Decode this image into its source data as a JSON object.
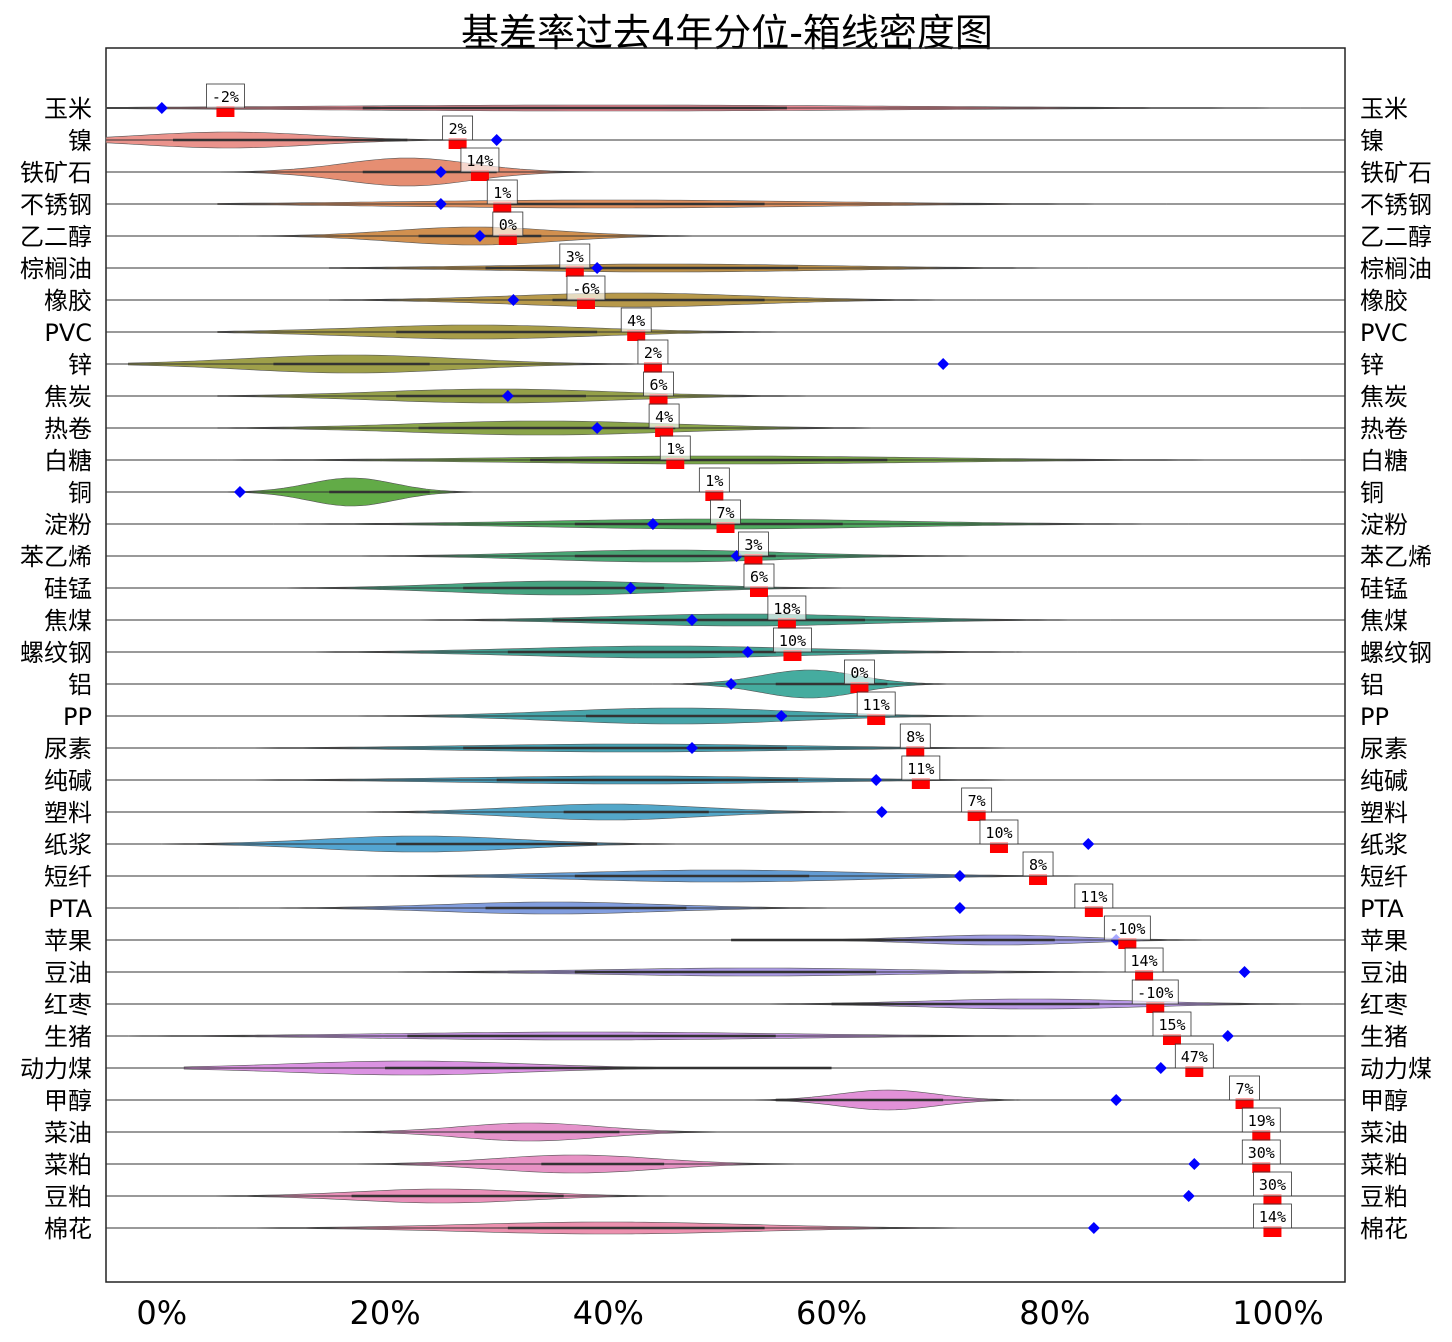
{
  "chart_data": {
    "type": "violin",
    "title": "基差率过去4年分位-箱线密度图",
    "xlabel": "",
    "ylabel": "",
    "xlim": [
      -0.05,
      1.06
    ],
    "xticks": [
      0,
      0.2,
      0.4,
      0.6,
      0.8,
      1.0
    ],
    "xtick_labels": [
      "0%",
      "20%",
      "40%",
      "60%",
      "80%",
      "100%"
    ],
    "grid": false,
    "legend": "none",
    "current_marker_color": "#ff0000",
    "reference_marker_color": "#0000ff",
    "categories": [
      "玉米",
      "镍",
      "铁矿石",
      "不锈钢",
      "乙二醇",
      "棕榈油",
      "橡胶",
      "PVC",
      "锌",
      "焦炭",
      "热卷",
      "白糖",
      "铜",
      "淀粉",
      "苯乙烯",
      "硅锰",
      "焦煤",
      "螺纹钢",
      "铝",
      "PP",
      "尿素",
      "纯碱",
      "塑料",
      "纸浆",
      "短纤",
      "PTA",
      "苹果",
      "豆油",
      "红枣",
      "生猪",
      "动力煤",
      "甲醇",
      "菜油",
      "菜粕",
      "豆粕",
      "棉花"
    ],
    "series": [
      {
        "name": "玉米",
        "color": "#e8818c",
        "density_center": 0.4,
        "density_spread": 0.55,
        "height": 3,
        "line_range": [
          -0.05,
          1.02
        ],
        "box": [
          0.18,
          0.56
        ],
        "current": 0.057,
        "current_label": "-2%",
        "reference": 0.0
      },
      {
        "name": "镍",
        "color": "#ea8d86",
        "density_center": 0.06,
        "density_spread": 0.16,
        "height": 8,
        "line_range": [
          -0.05,
          0.35
        ],
        "box": [
          0.01,
          0.22
        ],
        "current": 0.265,
        "current_label": "2%",
        "reference": 0.3
      },
      {
        "name": "铁矿石",
        "color": "#e5886a",
        "density_center": 0.22,
        "density_spread": 0.12,
        "height": 14,
        "line_range": [
          -0.03,
          1.05
        ],
        "box": [
          0.18,
          0.3
        ],
        "current": 0.285,
        "current_label": "14%",
        "reference": 0.25
      },
      {
        "name": "不锈钢",
        "color": "#df8a55",
        "density_center": 0.4,
        "density_spread": 0.38,
        "height": 4,
        "line_range": [
          0.05,
          0.9
        ],
        "box": [
          0.3,
          0.54
        ],
        "current": 0.305,
        "current_label": "1%",
        "reference": 0.25
      },
      {
        "name": "乙二醇",
        "color": "#cf8a46",
        "density_center": 0.28,
        "density_spread": 0.15,
        "height": 9,
        "line_range": [
          0.07,
          0.62
        ],
        "box": [
          0.23,
          0.34
        ],
        "current": 0.31,
        "current_label": "0%",
        "reference": 0.285
      },
      {
        "name": "棕榈油",
        "color": "#b88a3e",
        "density_center": 0.45,
        "density_spread": 0.3,
        "height": 4,
        "line_range": [
          0.15,
          0.83
        ],
        "box": [
          0.29,
          0.57
        ],
        "current": 0.37,
        "current_label": "3%",
        "reference": 0.39
      },
      {
        "name": "橡胶",
        "color": "#b39440",
        "density_center": 0.42,
        "density_spread": 0.22,
        "height": 7,
        "line_range": [
          0.15,
          0.73
        ],
        "box": [
          0.35,
          0.54
        ],
        "current": 0.38,
        "current_label": "-6%",
        "reference": 0.315
      },
      {
        "name": "PVC",
        "color": "#a3983e",
        "density_center": 0.28,
        "density_spread": 0.22,
        "height": 7,
        "line_range": [
          0.05,
          0.65
        ],
        "box": [
          0.21,
          0.39
        ],
        "current": 0.425,
        "current_label": "4%",
        "reference": null
      },
      {
        "name": "锌",
        "color": "#999a3f",
        "density_center": 0.17,
        "density_spread": 0.2,
        "height": 9,
        "line_range": [
          -0.03,
          0.65
        ],
        "box": [
          0.1,
          0.24
        ],
        "current": 0.44,
        "current_label": "2%",
        "reference": 0.7
      },
      {
        "name": "焦炭",
        "color": "#8f9b3f",
        "density_center": 0.3,
        "density_spread": 0.22,
        "height": 7,
        "line_range": [
          0.05,
          0.7
        ],
        "box": [
          0.21,
          0.38
        ],
        "current": 0.445,
        "current_label": "6%",
        "reference": 0.31
      },
      {
        "name": "热卷",
        "color": "#849f3f",
        "density_center": 0.34,
        "density_spread": 0.24,
        "height": 7,
        "line_range": [
          0.05,
          0.72
        ],
        "box": [
          0.23,
          0.46
        ],
        "current": 0.45,
        "current_label": "4%",
        "reference": 0.39
      },
      {
        "name": "白糖",
        "color": "#73a13e",
        "density_center": 0.5,
        "density_spread": 0.38,
        "height": 4,
        "line_range": [
          0.05,
          1.02
        ],
        "box": [
          0.33,
          0.65
        ],
        "current": 0.46,
        "current_label": "1%",
        "reference": null
      },
      {
        "name": "铜",
        "color": "#5aa73d",
        "density_center": 0.17,
        "density_spread": 0.08,
        "height": 14,
        "line_range": [
          0.02,
          0.36
        ],
        "box": [
          0.15,
          0.24
        ],
        "current": 0.495,
        "current_label": "1%",
        "reference": 0.07
      },
      {
        "name": "淀粉",
        "color": "#45a455",
        "density_center": 0.5,
        "density_spread": 0.32,
        "height": 5,
        "line_range": [
          0.1,
          0.92
        ],
        "box": [
          0.37,
          0.61
        ],
        "current": 0.505,
        "current_label": "7%",
        "reference": 0.44
      },
      {
        "name": "苯乙烯",
        "color": "#3fa06d",
        "density_center": 0.45,
        "density_spread": 0.22,
        "height": 6,
        "line_range": [
          0.1,
          0.88
        ],
        "box": [
          0.37,
          0.55
        ],
        "current": 0.53,
        "current_label": "3%",
        "reference": 0.515
      },
      {
        "name": "硅锰",
        "color": "#3b9e79",
        "density_center": 0.36,
        "density_spread": 0.2,
        "height": 7,
        "line_range": [
          0.05,
          0.75
        ],
        "box": [
          0.27,
          0.45
        ],
        "current": 0.535,
        "current_label": "6%",
        "reference": 0.42
      },
      {
        "name": "焦煤",
        "color": "#3a9d84",
        "density_center": 0.52,
        "density_spread": 0.24,
        "height": 6,
        "line_range": [
          0.1,
          0.85
        ],
        "box": [
          0.35,
          0.63
        ],
        "current": 0.56,
        "current_label": "18%",
        "reference": 0.475
      },
      {
        "name": "螺纹钢",
        "color": "#3a9d8e",
        "density_center": 0.45,
        "density_spread": 0.26,
        "height": 6,
        "line_range": [
          0.05,
          0.82
        ],
        "box": [
          0.31,
          0.55
        ],
        "current": 0.565,
        "current_label": "10%",
        "reference": 0.525
      },
      {
        "name": "铝",
        "color": "#3ba89a",
        "density_center": 0.58,
        "density_spread": 0.09,
        "height": 14,
        "line_range": [
          0.44,
          0.75
        ],
        "box": [
          0.55,
          0.65
        ],
        "current": 0.625,
        "current_label": "0%",
        "reference": 0.51
      },
      {
        "name": "PP",
        "color": "#3ca0a5",
        "density_center": 0.46,
        "density_spread": 0.22,
        "height": 8,
        "line_range": [
          0.1,
          0.85
        ],
        "box": [
          0.38,
          0.56
        ],
        "current": 0.64,
        "current_label": "11%",
        "reference": 0.555
      },
      {
        "name": "尿素",
        "color": "#3c9cae",
        "density_center": 0.42,
        "density_spread": 0.3,
        "height": 4,
        "line_range": [
          0.05,
          0.92
        ],
        "box": [
          0.27,
          0.56
        ],
        "current": 0.675,
        "current_label": "8%",
        "reference": 0.475
      },
      {
        "name": "纯碱",
        "color": "#3e99b7",
        "density_center": 0.42,
        "density_spread": 0.3,
        "height": 4,
        "line_range": [
          0.05,
          0.92
        ],
        "box": [
          0.3,
          0.57
        ],
        "current": 0.68,
        "current_label": "11%",
        "reference": 0.64
      },
      {
        "name": "塑料",
        "color": "#4aa2c6",
        "density_center": 0.4,
        "density_spread": 0.17,
        "height": 8,
        "line_range": [
          0.12,
          0.74
        ],
        "box": [
          0.36,
          0.49
        ],
        "current": 0.73,
        "current_label": "7%",
        "reference": 0.645
      },
      {
        "name": "纸浆",
        "color": "#4aa0cf",
        "density_center": 0.23,
        "density_spread": 0.18,
        "height": 8,
        "line_range": [
          0.0,
          0.82
        ],
        "box": [
          0.21,
          0.39
        ],
        "current": 0.75,
        "current_label": "10%",
        "reference": 0.83
      },
      {
        "name": "短纤",
        "color": "#5b97d2",
        "density_center": 0.5,
        "density_spread": 0.26,
        "height": 6,
        "line_range": [
          0.08,
          0.98
        ],
        "box": [
          0.37,
          0.58
        ],
        "current": 0.785,
        "current_label": "8%",
        "reference": 0.715
      },
      {
        "name": "PTA",
        "color": "#7a98dc",
        "density_center": 0.35,
        "density_spread": 0.2,
        "height": 6,
        "line_range": [
          0.07,
          0.75
        ],
        "box": [
          0.29,
          0.47
        ],
        "current": 0.835,
        "current_label": "11%",
        "reference": 0.715
      },
      {
        "name": "苹果",
        "color": "#9a97e0",
        "density_center": 0.75,
        "density_spread": 0.15,
        "height": 5,
        "line_range": [
          0.35,
          0.98
        ],
        "box": [
          0.51,
          0.8
        ],
        "current": 0.865,
        "current_label": "-10%",
        "reference": 0.855
      },
      {
        "name": "豆油",
        "color": "#a796e4",
        "density_center": 0.53,
        "density_spread": 0.28,
        "height": 4,
        "line_range": [
          0.1,
          0.98
        ],
        "box": [
          0.37,
          0.64
        ],
        "current": 0.88,
        "current_label": "14%",
        "reference": 0.97
      },
      {
        "name": "红枣",
        "color": "#b694e6",
        "density_center": 0.78,
        "density_spread": 0.2,
        "height": 5,
        "line_range": [
          0.3,
          1.05
        ],
        "box": [
          0.6,
          0.84
        ],
        "current": 0.89,
        "current_label": "-10%",
        "reference": null
      },
      {
        "name": "生猪",
        "color": "#c38fe3",
        "density_center": 0.38,
        "density_spread": 0.36,
        "height": 4,
        "line_range": [
          -0.03,
          1.0
        ],
        "box": [
          0.22,
          0.55
        ],
        "current": 0.905,
        "current_label": "15%",
        "reference": 0.955
      },
      {
        "name": "动力煤",
        "color": "#d98ce0",
        "density_center": 0.22,
        "density_spread": 0.22,
        "height": 7,
        "line_range": [
          0.02,
          0.9
        ],
        "box": [
          0.2,
          0.6
        ],
        "current": 0.925,
        "current_label": "47%",
        "reference": 0.895
      },
      {
        "name": "甲醇",
        "color": "#e08bd6",
        "density_center": 0.65,
        "density_spread": 0.09,
        "height": 10,
        "line_range": [
          0.35,
          0.95
        ],
        "box": [
          0.55,
          0.7
        ],
        "current": 0.97,
        "current_label": "7%",
        "reference": 0.855
      },
      {
        "name": "菜油",
        "color": "#e48dc8",
        "density_center": 0.33,
        "density_spread": 0.13,
        "height": 9,
        "line_range": [
          0.07,
          0.65
        ],
        "box": [
          0.28,
          0.41
        ],
        "current": 0.985,
        "current_label": "19%",
        "reference": null
      },
      {
        "name": "菜粕",
        "color": "#e68cc1",
        "density_center": 0.37,
        "density_spread": 0.15,
        "height": 9,
        "line_range": [
          0.07,
          0.9
        ],
        "box": [
          0.34,
          0.45
        ],
        "current": 0.985,
        "current_label": "30%",
        "reference": 0.925
      },
      {
        "name": "豆粕",
        "color": "#e98ab5",
        "density_center": 0.25,
        "density_spread": 0.16,
        "height": 7,
        "line_range": [
          0.0,
          0.76
        ],
        "box": [
          0.17,
          0.36
        ],
        "current": 0.995,
        "current_label": "30%",
        "reference": 0.92
      },
      {
        "name": "棉花",
        "color": "#eb8aaa",
        "density_center": 0.4,
        "density_spread": 0.26,
        "height": 6,
        "line_range": [
          0.05,
          0.95
        ],
        "box": [
          0.31,
          0.54
        ],
        "current": 0.995,
        "current_label": "14%",
        "reference": 0.835
      }
    ]
  }
}
